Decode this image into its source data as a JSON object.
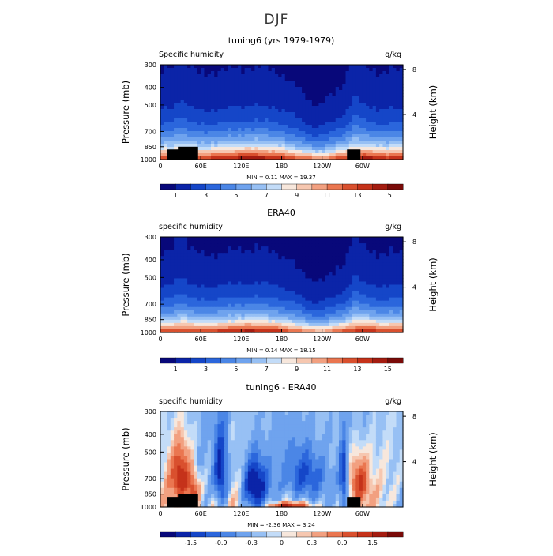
{
  "figure_title": "DJF",
  "chart_data": [
    {
      "type": "heatmap",
      "title": "tuning6 (yrs 1979-1979)",
      "variable_label": "Specific humidity",
      "units_label": "g/kg",
      "ylabel": "Pressure (mb)",
      "y2label": "Height (km)",
      "pressure_ticks": [
        300,
        400,
        500,
        700,
        850,
        1000
      ],
      "height_ticks": [
        8,
        4
      ],
      "x_ticks": [
        "0",
        "60E",
        "120E",
        "180",
        "120W",
        "60W"
      ],
      "x_tick_values": [
        0,
        60,
        120,
        180,
        240,
        300
      ],
      "xlim": [
        0,
        360
      ],
      "ylim": [
        1000,
        300
      ],
      "min_text": "MIN =     0.11   MAX =    19.37",
      "colorbar_labels": [
        "1",
        "3",
        "5",
        "7",
        "9",
        "11",
        "13",
        "15"
      ],
      "colorbar_levels": [
        0,
        1,
        2,
        3,
        4,
        5,
        6,
        7,
        8,
        9,
        10,
        11,
        12,
        13,
        14,
        15,
        16
      ],
      "vmin": 0,
      "vmax": 16,
      "surface_near": 13.5,
      "top_value": 0.3,
      "moist_scale": 1.0,
      "terrain": true
    },
    {
      "type": "heatmap",
      "title": "ERA40",
      "variable_label": "specific humidity",
      "units_label": "g/kg",
      "ylabel": "Pressure (mb)",
      "y2label": "Height (km)",
      "pressure_ticks": [
        300,
        400,
        500,
        700,
        850,
        1000
      ],
      "height_ticks": [
        8,
        4
      ],
      "x_ticks": [
        "0",
        "60E",
        "120E",
        "180",
        "120W",
        "60W"
      ],
      "x_tick_values": [
        0,
        60,
        120,
        180,
        240,
        300
      ],
      "xlim": [
        0,
        360
      ],
      "ylim": [
        1000,
        300
      ],
      "min_text": "MIN =     0.14   MAX =    18.15",
      "colorbar_labels": [
        "1",
        "3",
        "5",
        "7",
        "9",
        "11",
        "13",
        "15"
      ],
      "colorbar_levels": [
        0,
        1,
        2,
        3,
        4,
        5,
        6,
        7,
        8,
        9,
        10,
        11,
        12,
        13,
        14,
        15,
        16
      ],
      "vmin": 0,
      "vmax": 16,
      "surface_near": 13.0,
      "top_value": 0.3,
      "moist_scale": 0.95,
      "terrain": false
    },
    {
      "type": "heatmap",
      "title": "tuning6 - ERA40",
      "variable_label": "specific humidity",
      "units_label": "g/kg",
      "ylabel": "Pressure (mb)",
      "y2label": "Height (km)",
      "pressure_ticks": [
        300,
        400,
        500,
        700,
        850,
        1000
      ],
      "height_ticks": [
        8,
        4
      ],
      "x_ticks": [
        "0",
        "60E",
        "120E",
        "180",
        "120W",
        "60W"
      ],
      "x_tick_values": [
        0,
        60,
        120,
        180,
        240,
        300
      ],
      "xlim": [
        0,
        360
      ],
      "ylim": [
        1000,
        300
      ],
      "min_text": "MIN =    -2.36   MAX =     3.24",
      "colorbar_labels": [
        "-1.5",
        "-0.9",
        "-0.3",
        "0",
        "0.3",
        "0.9",
        "1.5"
      ],
      "colorbar_levels": [
        -2.1,
        -1.8,
        -1.5,
        -1.2,
        -0.9,
        -0.6,
        -0.3,
        -0.15,
        0,
        0.15,
        0.3,
        0.6,
        0.9,
        1.2,
        1.5,
        1.8,
        2.1
      ],
      "vmin": -2.1,
      "vmax": 2.1,
      "terrain": true,
      "difference": true
    }
  ],
  "colors": {
    "sequential": [
      "#08087a",
      "#0b24a8",
      "#1546c8",
      "#2b66dc",
      "#4b86e6",
      "#6fa3ee",
      "#97c0f4",
      "#c3dcf8",
      "#f7e7dc",
      "#f6c7b0",
      "#f2a080",
      "#ea7650",
      "#d9502e",
      "#c5321a",
      "#a41c10",
      "#7a0a08"
    ],
    "diverging": [
      "#08087a",
      "#0b24a8",
      "#1546c8",
      "#2b66dc",
      "#4b86e6",
      "#6fa3ee",
      "#97c0f4",
      "#c3dcf8",
      "#f7e7dc",
      "#f6c7b0",
      "#f2a080",
      "#ea7650",
      "#d9502e",
      "#c5321a",
      "#a41c10",
      "#7a0a08"
    ],
    "terrain": "#000000"
  }
}
